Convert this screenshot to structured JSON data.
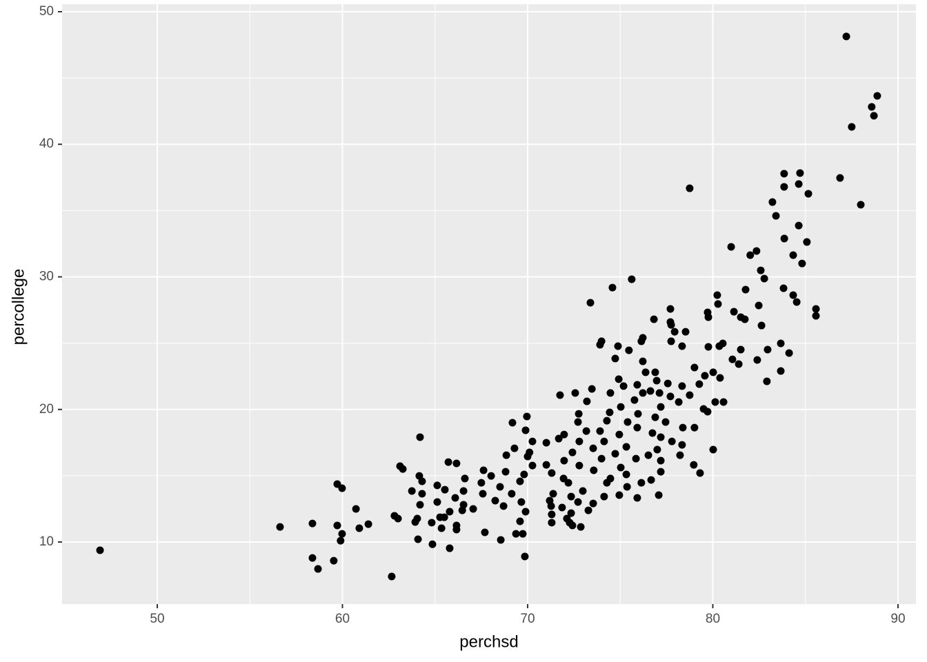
{
  "chart_data": {
    "type": "scatter",
    "x_label": "perchsd",
    "y_label": "percollege",
    "color": "#000000",
    "x": [
      46.91,
      87.21,
      88.88,
      88.58,
      88.7,
      87.5,
      86.87,
      87.99,
      83.85,
      84.71,
      84.64,
      85.16,
      83.85,
      78.75,
      83.22,
      83.41,
      84.64,
      83.86,
      85.08,
      80.99,
      82.36,
      82.02,
      84.34,
      84.82,
      82.59,
      82.78,
      75.62,
      74.58,
      83.82,
      81.77,
      80.24,
      84.34,
      84.53,
      80.28,
      73.39,
      82.48,
      77.71,
      85.57,
      79.72,
      81.14,
      85.57,
      79.76,
      81.51,
      81.73,
      76.82,
      77.71,
      82.63,
      77.75,
      77.94,
      78.53,
      76.22,
      76.14,
      77.75,
      73.99,
      83.67,
      80.54,
      79.76,
      73.91,
      80.35,
      78.34,
      74.88,
      81.51,
      82.96,
      75.47,
      84.12,
      74.73,
      81.06,
      82.4,
      81.4,
      76.22,
      79.01,
      83.67,
      76.89,
      76.37,
      80.02,
      79.57,
      80.39,
      74.92,
      82.92,
      76.97,
      79.27,
      77.57,
      73.47,
      75.18,
      78.34,
      75.92,
      72.57,
      74.47,
      71.75,
      77.12,
      76.22,
      78.75,
      76.63,
      77.71,
      80.13,
      80.58,
      73.2,
      75.77,
      78.16,
      75.03,
      77.19,
      79.5,
      79.72,
      72.76,
      74.43,
      75.96,
      69.96,
      76.89,
      69.18,
      74.28,
      72.72,
      77.45,
      75.4,
      79.01,
      78.38,
      73.17,
      73.91,
      75.92,
      76.74,
      71.97,
      74.95,
      69.89,
      64.19,
      77.19,
      77.79,
      80.02,
      70.26,
      71.01,
      72.79,
      74.13,
      78.34,
      71.68,
      69.29,
      73.54,
      75.33,
      77.0,
      70.1,
      72.42,
      74.73,
      76.52,
      78.23,
      68.85,
      70.0,
      73.99,
      75.85,
      71.97,
      77.19,
      65.72,
      66.16,
      70.26,
      72.79,
      75.03,
      78.97,
      63.11,
      63.26,
      71.01,
      67.62,
      73.57,
      77.19,
      71.3,
      68.81,
      79.31,
      75.33,
      69.81,
      66.61,
      68.03,
      71.94,
      74.47,
      64.15,
      76.67,
      74.28,
      64.3,
      59.72,
      59.98,
      67.5,
      69.59,
      72.2,
      76.14,
      65.12,
      65.53,
      75.37,
      68.51,
      66.54,
      72.98,
      63.75,
      64.3,
      67.58,
      69.14,
      71.38,
      74.95,
      77.08,
      72.35,
      74.13,
      66.09,
      75.92,
      68.25,
      71.19,
      65.12,
      69.66,
      72.72,
      73.54,
      66.54,
      64.19,
      68.7,
      71.27,
      71.86,
      67.06,
      60.73,
      66.47,
      73.28,
      65.79,
      69.89,
      72.35,
      71.3,
      62.81,
      63.0,
      72.12,
      65.27,
      64.04,
      63.93,
      64.82,
      65.5,
      71.3,
      69.59,
      72.27,
      58.38,
      72.42,
      56.63,
      59.72,
      61.4,
      65.35,
      66.16,
      72.87,
      60.91,
      66.16,
      59.98,
      67.69,
      69.37,
      69.74,
      64.08,
      68.55,
      59.9,
      64.86,
      65.79,
      58.38,
      59.53,
      69.85,
      58.68,
      62.66
    ],
    "values": [
      9.38,
      48.13,
      43.65,
      42.82,
      42.15,
      41.31,
      37.46,
      35.44,
      37.78,
      37.83,
      37.0,
      36.27,
      36.79,
      36.68,
      35.64,
      34.6,
      33.87,
      32.89,
      32.63,
      32.26,
      31.95,
      31.64,
      31.64,
      31.01,
      30.49,
      29.87,
      29.82,
      29.19,
      29.14,
      29.04,
      28.62,
      28.62,
      28.1,
      27.95,
      28.05,
      27.84,
      27.58,
      27.58,
      27.32,
      27.37,
      27.06,
      26.96,
      26.96,
      26.8,
      26.8,
      26.59,
      26.33,
      26.38,
      25.86,
      25.86,
      25.4,
      25.14,
      25.14,
      25.14,
      24.98,
      24.98,
      24.72,
      24.88,
      24.77,
      24.77,
      24.77,
      24.51,
      24.51,
      24.46,
      24.25,
      23.84,
      23.78,
      23.73,
      23.42,
      23.63,
      23.16,
      22.9,
      22.8,
      22.8,
      22.8,
      22.54,
      22.38,
      22.28,
      22.12,
      22.17,
      21.91,
      21.96,
      21.55,
      21.76,
      21.76,
      21.86,
      21.24,
      21.24,
      21.08,
      21.24,
      21.24,
      21.08,
      21.39,
      20.98,
      20.56,
      20.56,
      20.61,
      20.71,
      20.56,
      20.19,
      20.19,
      20.04,
      19.83,
      19.67,
      19.78,
      19.67,
      19.47,
      19.41,
      19.0,
      19.15,
      19.05,
      19.05,
      19.05,
      18.63,
      18.63,
      18.37,
      18.37,
      18.63,
      18.22,
      18.11,
      18.11,
      18.43,
      17.91,
      17.91,
      17.59,
      16.97,
      17.59,
      17.49,
      17.59,
      17.59,
      17.33,
      17.8,
      17.07,
      17.07,
      17.18,
      16.97,
      16.76,
      16.76,
      16.66,
      16.55,
      16.55,
      16.55,
      16.45,
      16.29,
      16.29,
      16.14,
      16.14,
      16.03,
      15.93,
      15.77,
      15.77,
      15.62,
      15.82,
      15.72,
      15.51,
      15.82,
      15.41,
      15.41,
      15.3,
      15.2,
      15.3,
      15.2,
      15.1,
      15.1,
      14.79,
      14.99,
      14.79,
      14.79,
      14.99,
      14.68,
      14.47,
      14.58,
      14.37,
      14.06,
      14.47,
      14.58,
      14.47,
      14.47,
      14.27,
      13.95,
      14.16,
      14.16,
      13.85,
      13.85,
      13.85,
      13.64,
      13.64,
      13.64,
      13.64,
      13.54,
      13.54,
      13.43,
      13.43,
      13.33,
      13.33,
      13.12,
      13.12,
      13.02,
      13.02,
      13.02,
      12.91,
      12.81,
      12.81,
      12.71,
      12.71,
      12.6,
      12.5,
      12.5,
      12.39,
      12.39,
      12.29,
      12.29,
      12.18,
      12.08,
      11.98,
      11.77,
      11.77,
      11.87,
      11.77,
      11.51,
      11.46,
      11.87,
      11.46,
      11.56,
      11.46,
      11.4,
      11.25,
      11.14,
      11.25,
      11.35,
      11.04,
      11.25,
      11.14,
      11.04,
      10.94,
      10.62,
      10.73,
      10.62,
      10.62,
      10.21,
      10.16,
      10.1,
      9.83,
      9.53,
      8.8,
      8.59,
      8.91,
      7.97,
      7.4
    ],
    "xlim": [
      44.86,
      90.97
    ],
    "ylim": [
      5.32,
      50.57
    ],
    "xticks": [
      50,
      60,
      70,
      80,
      90
    ],
    "yticks": [
      10,
      20,
      30,
      40,
      50
    ],
    "x_minor_grid": [
      55,
      65,
      75,
      85
    ],
    "y_minor_grid": [
      15,
      25,
      35,
      45
    ],
    "grid": true
  }
}
